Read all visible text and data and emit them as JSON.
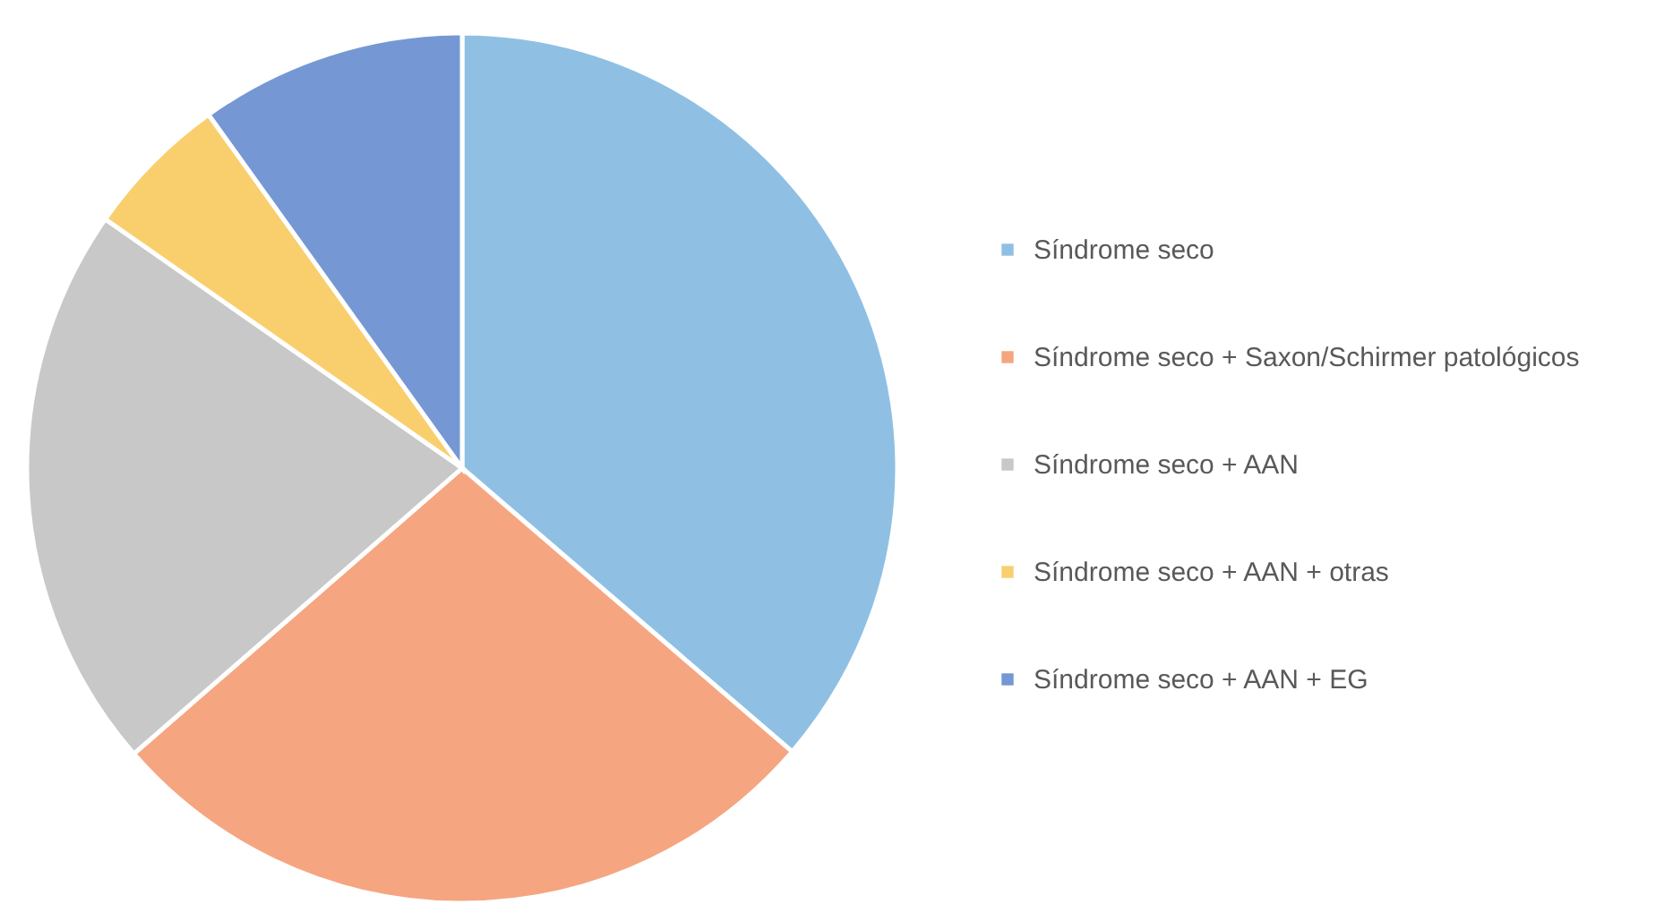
{
  "chart_data": {
    "type": "pie",
    "categories": [
      "Síndrome seco",
      "Síndrome seco + Saxon/Schirmer patológicos",
      "Síndrome seco + AAN",
      "Síndrome seco + AAN + otras",
      "Síndrome seco + AAN + EG"
    ],
    "values": [
      36.3,
      27.3,
      21.1,
      5.4,
      9.9
    ],
    "colors": [
      "#8fc0e4",
      "#f5a680",
      "#c8c8c8",
      "#f9cf6e",
      "#7598d4"
    ],
    "legend": "right"
  }
}
